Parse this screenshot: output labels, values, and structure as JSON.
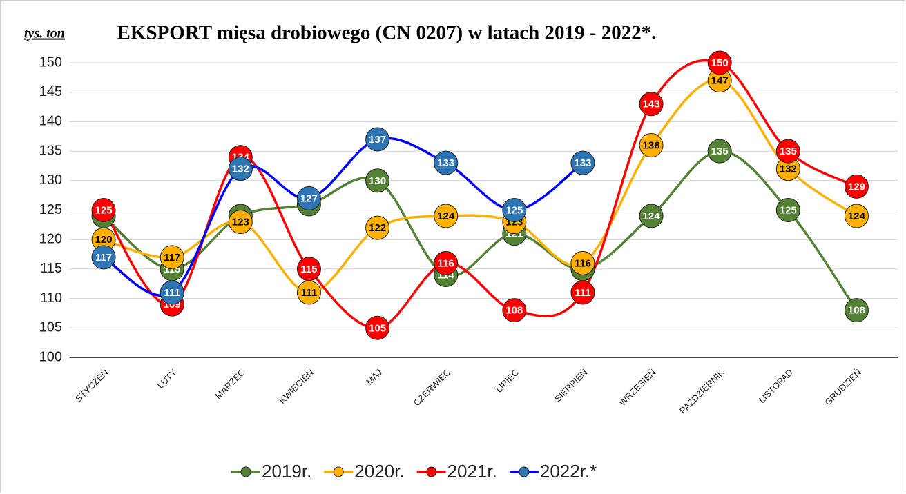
{
  "chart_data": {
    "type": "line",
    "title": "EKSPORT mięsa drobiowego (CN 0207) w latach 2019 - 2022*.",
    "y_axis_label": "tys. ton",
    "categories": [
      "STYCZEŃ",
      "LUTY",
      "MARZEC",
      "KWIECIEŃ",
      "MAJ",
      "CZERWIEC",
      "LIPIEC",
      "SIERPIEŃ",
      "WRZESIEŃ",
      "PAŹDZIERNIK",
      "LISTOPAD",
      "GRUDZIEŃ"
    ],
    "series": [
      {
        "name": "2019r.",
        "color": "#548235",
        "label_color": "#ffffff",
        "values": [
          124,
          115,
          124,
          126,
          130,
          114,
          121,
          115,
          124,
          135,
          125,
          108
        ]
      },
      {
        "name": "2020r.",
        "color": "#ffb000",
        "label_color": "#000000",
        "values": [
          120,
          117,
          123,
          111,
          122,
          124,
          123,
          116,
          136,
          147,
          132,
          124
        ]
      },
      {
        "name": "2021r.",
        "color": "#ff0000",
        "label_color": "#ffffff",
        "values": [
          125,
          109,
          134,
          115,
          105,
          116,
          108,
          111,
          143,
          150,
          135,
          129
        ]
      },
      {
        "name": "2022r.*",
        "color": "#0000ff",
        "marker_color": "#2e75b6",
        "label_color": "#ffffff",
        "values": [
          117,
          111,
          132,
          127,
          137,
          133,
          125,
          133,
          null,
          null,
          null,
          null
        ]
      }
    ],
    "ylim": [
      100,
      150
    ],
    "yticks": [
      100,
      105,
      110,
      115,
      120,
      125,
      130,
      135,
      140,
      145,
      150
    ],
    "grid": true,
    "legend": "bottom",
    "smooth": true
  }
}
